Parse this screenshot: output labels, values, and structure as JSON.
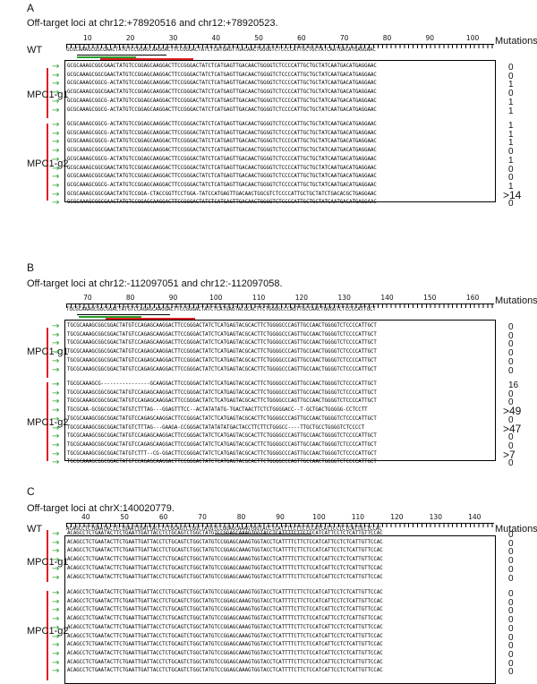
{
  "panels": [
    {
      "label": "A",
      "title": "Off-target loci at chr12:+78920516 and chr12:+78920523.",
      "wt_label": "WT",
      "mutations_header": "Mutations",
      "ruler_ticks": [
        "10",
        "20",
        "30",
        "40",
        "50",
        "60",
        "70",
        "80",
        "90",
        "100"
      ],
      "wt_seq": "GCGCAAAGCGGCGAACTATGTCCGGAGCAAGGACTTCCGGGACTATCTCATGAGTTGACAACTGGGGTCTCCCCATTGCTGCTATCAATGACATGAGGAAC",
      "groups": [
        {
          "name": "MPC1-g1",
          "rows": [
            {
              "seq": "GCGCAAAGCGGCGAACTATGTCCGGAGCAAGGACTTCCGGGACTATCTCATGAGTTGACAACTGGGGTCTCCCCATTGCTGCTATCAATGACATGAGGAAC",
              "mut": "0"
            },
            {
              "seq": "GCGCAAAGCGGCGAACTATGTCCGGAGCAAGGACTTCCGGGACTATCTCATGAGTTGACAACTGGGGTCTCCCCATTGCTGCTATCAATGACATGAGGAAC",
              "mut": "0"
            },
            {
              "seq": "GCGCAAAGCGGCG-ACTATGTCCGGAGCAAGGACTTCCGGGACTATCTCATGAGTTGACAACTGGGGTCTCCCCATTGCTGCTATCAATGACATGAGGAAC",
              "mut": "1"
            },
            {
              "seq": "GCGCAAAGCGGCGAACTATGTCCGGAGCAAGGACTTCCGGGACTATCTCATGAGTTGACAACTGGGGTCTCCCCATTGCTGCTATCAATGACATGAGGAAC",
              "mut": "0"
            },
            {
              "seq": "GCGCAAAGCGGCG-ACTATGTCCGGAGCAAGGACTTCCGGGACTATCTCATGAGTTGACAACTGGGGTCTCCCCATTGCTGCTATCAATGACATGAGGAAC",
              "mut": "1"
            },
            {
              "seq": "GCGCAAAGCGGCG-ACTATGTCCGGAGCAAGGACTTCCGGGACTATCTCATGAGTTGACAACTGGGGTCTCCCCATTGCTGCTATCAATGACATGAGGAAC",
              "mut": "1"
            }
          ]
        },
        {
          "name": "MPC1-g2",
          "rows": [
            {
              "seq": "GCGCAAAGCGGCG-ACTATGTCCGGAGCAAGGACTTCCGGGACTATCTCATGAGTTGACAACTGGGGTCTCCCCATTGCTGCTATCAATGACATGAGGAAC",
              "mut": "1"
            },
            {
              "seq": "GCGCAAAGCGGCG-ACTATGTCCGGAGCAAGGACTTCCGGGACTATCTCATGAGTTGACAACTGGGGTCTCCCCATTGCTGCTATCAATGACATGAGGAAC",
              "mut": "1"
            },
            {
              "seq": "GCGCAAAGCGGCG-ACTATGTCCGGAGCAAGGACTTCCGGGACTATCTCATGAGTTGACAACTGGGGTCTCCCCATTGCTGCTATCAATGACATGAGGAAC",
              "mut": "1"
            },
            {
              "seq": "GCGCAAAGCGGCGAACTATGTCCGGAGCAAGGACTTCCGGGACTATCTCATGAGTTGACAACTGGGGTCTCCCCATTGCTGCTATCAATGACATGAGGAAC",
              "mut": "0"
            },
            {
              "seq": "GCGCAAAGCGGCG-ACTATGTCCGGAGCAAGGACTTCCGGGACTATCTCATGAGTTGACAACTGGGGTCTCCCCATTGCTGCTATCAATGACATGAGGAAC",
              "mut": "1"
            },
            {
              "seq": "GCGCAAAGCGGCGAACTATGTCCGGAGCAAGGACTTCCGGGACTATCTCATGAGTTGACAACTGGGGTCTCCCCATTGCTGCTATCAATGACATGAGGAAC",
              "mut": "0"
            },
            {
              "seq": "GCGCAAAGCGGCGAACTATGTCCGGAGCAAGGACTTCCGGGACTATCTCATGAGTTGACAACTGGGGTCTCCCCATTGCTGCTATCAATGACATGAGGAAC",
              "mut": "0"
            },
            {
              "seq": "GCGCAAAGCGGCG-ACTATGTCCGGAGCAAGGACTTCCGGGACTATCTCATGAGTTGACAACTGGGGTCTCCCCATTGCTGCTATCAATGACATGAGGAAC",
              "mut": "1"
            },
            {
              "seq": "GCGCAAAGCGGCGAACTATGTCCGGA-CTACCGGTTCCTGGA-TATCCATGAGTTGACAACTGGCGTCTCCCCATTGCTGCTATCTGACACGCTGAGGAAC",
              "mut": ">14"
            },
            {
              "seq": "GCGCAAAGCGGCGAACTATGTCCGGAGCAAGGACTTCCGGGACTATCTCATGAGTTGACAACTGGGGTCTCCCCATTGCTGCTATCAATGACATGAGGAAC",
              "mut": "0"
            }
          ]
        }
      ]
    },
    {
      "label": "B",
      "title": "Off-target loci at chr12:-112097051 and chr12:-112097058.",
      "wt_label": "",
      "mutations_header": "Mutations",
      "ruler_ticks": [
        "70",
        "80",
        "90",
        "100",
        "110",
        "120",
        "130",
        "140",
        "150",
        "160"
      ],
      "wt_seq": "TGCGCAAAGCGGCGGACTATGTCCAGAGCAAGGACTTCCGGGACTATCTCATGAGTACGCACTTCTGGGGCCCAGTTGCCAACTGGGGTCTCCCCATTGCT",
      "groups": [
        {
          "name": "MPC1-g1",
          "rows": [
            {
              "seq": "TGCGCAAAGCGGCGGACTATGTCCAGAGCAAGGACTTCCGGGACTATCTCATGAGTACGCACTTCTGGGGCCCAGTTGCCAACTGGGGTCTCCCCATTGCT",
              "mut": "0"
            },
            {
              "seq": "TGCGCAAAGCGGCGGACTATGTCCAGAGCAAGGACTTCCGGGACTATCTCATGAGTACGCACTTCTGGGGCCCAGTTGCCAACTGGGGTCTCCCCATTGCT",
              "mut": "0"
            },
            {
              "seq": "TGCGCAAAGCGGCGGACTATGTCCAGAGCAAGGACTTCCGGGACTATCTCATGAGTACGCACTTCTGGGGCCCAGTTGCCAACTGGGGTCTCCCCATTGCT",
              "mut": "0"
            },
            {
              "seq": "TGCGCAAAGCGGCGGACTATGTCCAGAGCAAGGACTTCCGGGACTATCTCATGAGTACGCACTTCTGGGGCCCAGTTGCCAACTGGGGTCTCCCCATTGCT",
              "mut": "0"
            },
            {
              "seq": "TGCGCAAAGCGGCGGACTATGTCCAGAGCAAGGACTTCCGGGACTATCTCATGAGTACGCACTTCTGGGGCCCAGTTGCCAACTGGGGTCTCCCCATTGCT",
              "mut": "0"
            },
            {
              "seq": "TGCGCAAAGCGGCGGACTATGTCCAGAGCAAGGACTTCCGGGACTATCTCATGAGTACGCACTTCTGGGGCCCAGTTGCCAACTGGGGTCTCCCCATTGCT",
              "mut": "0"
            }
          ]
        },
        {
          "name": "MPC1-g2",
          "rows": [
            {
              "seq": "TGCGCAAAGCG----------------GCAAGGACTTCCGGGACTATCTCATGAGTACGCACTTCTGGGGCCCAGTTGCCAACTGGGGTCTCCCCATTGCT",
              "mut": "16"
            },
            {
              "seq": "TGCGCAAAGCGGCGGACTATGTCCAGAGCAAGGACTTCCGGGACTATCTCATGAGTACGCACTTCTGGGGCCCAGTTGCCAACTGGGGTCTCCCCATTGCT",
              "mut": "0"
            },
            {
              "seq": "TGCGCAAAGCGGCGGACTATGTCCAGAGCAAGGACTTCCGGGACTATCTCATGAGTACGCACTTCTGGGGCCCAGTTGCCAACTGGGGTCTCCCCATTGCT",
              "mut": "0"
            },
            {
              "seq": "TGCGCAA-GCGGCGGACTATGTCTTTAG---GGAGTTTCC--ACTATATATG-TGACTAACTTCTCTGGGGACC--T-GCTGACTGGGGG-CCTCCTT",
              "mut": ">49"
            },
            {
              "seq": "TGCGCAAAGCGGCGGACTATGTCCAGAGCAAGGACTTCCGGGACTATCTCATGAGTACGCACTTCTGGGGCCCAGTTGCCAACTGGGGTCTCCCCATTGCT",
              "mut": "0"
            },
            {
              "seq": "TGCGCAAAGCGGCGGACTATGTCTTTAG---GAAGA-CCGGGACTATATATATGACTACCTTCTTCTGGGCC----TTGCTGCCTGGGGTCTCCCCT",
              "mut": ">47"
            },
            {
              "seq": "TGCGCAAAGCGGCGGACTATGTCCAGAGCAAGGACTTCCGGGACTATCTCATGAGTACGCACTTCTGGGGCCCAGTTGCCAACTGGGGTCTCCCCATTGCT",
              "mut": "0"
            },
            {
              "seq": "TGCGCAAAGCGGCGGACTATGTCCAGAGCAAGGACTTCCGGGACTATCTCATGAGTACGCACTTCTGGGGCCCAGTTGCCAACTGGGGTCTCCCCATTGCT",
              "mut": "0"
            },
            {
              "seq": "TGCGCAAAGCGGCGGACTATGTCTTT--CG-GGACTTCCGGGACTATCTCATGAGTACGCACTTCTGGGGCCCAGTTGCCAACTGGGGTCTCCCCATTGCT",
              "mut": ">7"
            },
            {
              "seq": "TGCGCAAAGCGGCGGACTATGTCCAGAGCAAGGACTTCCGGGACTATCTCATGAGTACGCACTTCTGGGGCCCAGTTGCCAACTGGGGTCTCCCCATTGCT",
              "mut": "0"
            }
          ]
        }
      ]
    },
    {
      "label": "C",
      "title": "Off-target loci at chrX:140020779.",
      "wt_label": "WT",
      "mutations_header": "Mutations",
      "ruler_ticks": [
        "40",
        "50",
        "60",
        "70",
        "80",
        "90",
        "100",
        "110",
        "120",
        "130",
        "140"
      ],
      "wt_seq": "ACAGCCTCTGAATACTTCTGAATTGATTACCTCTGCAGTCTGGCTATGTCCGGAGCAAAGTGGTACCTCATTTTCTTCTCCATCATTCCTCTCATTGTTCCAC",
      "groups": [
        {
          "name": "MPC1-g1",
          "rows": [
            {
              "seq": "ACAGCCTCTGAATACTTCTGAATTGATTACCTCTGCAGTCTGGCTATGTCCGGAGCAAAGTGGTACCTCATTTTCTTCTCCATCATTCCTCTCATTGTTCCAC",
              "mut": "0"
            },
            {
              "seq": "ACAGCCTCTGAATACTTCTGAATTGATTACCTCTGCAGTCTGGCTATGTCCGGAGCAAAGTGGTACCTCATTTTCTTCTCCATCATTCCTCTCATTGTTCCAC",
              "mut": "0"
            },
            {
              "seq": "ACAGCCTCTGAATACTTCTGAATTGATTACCTCTGCAGTCTGGCTATGTCCGGAGCAAAGTGGTACCTCATTTTCTTCTCCATCATTCCTCTCATTGTTCCAC",
              "mut": "0"
            },
            {
              "seq": "ACAGCCTCTGAATACTTCTGAATTGATTACCTCTGCAGTCTGGCTATGTCCGGAGCAAAGTGGTACCTCATTTTCTTCTCCATCATTCCTCTCATTGTTCCAC",
              "mut": "0"
            },
            {
              "seq": "ACAGCCTCTGAATACTTCTGAATTGATTACCTCTGCAGTCTGGCTATGTCCGGAGCAAAGTGGTACCTCATTTTCTTCTCCATCATTCCTCTCATTGTTCCAC",
              "mut": "0"
            },
            {
              "seq": "ACAGCCTCTGAATACTTCTGAATTGATTACCTCTGCAGTCTGGCTATGTCCGGAGCAAAGTGGTACCTCATTTTCTTCTCCATCATTCCTCTCATTGTTCCAC",
              "mut": "0"
            }
          ]
        },
        {
          "name": "MPC1-g2",
          "rows": [
            {
              "seq": "ACAGCCTCTGAATACTTCTGAATTGATTACCTCTGCAGTCTGGCTATGTCCGGAGCAAAGTGGTACCTCATTTTCTTCTCCATCATTCCTCTCATTGTTCCAC",
              "mut": "0"
            },
            {
              "seq": "ACAGCCTCTGAATACTTCTGAATTGATTACCTCTGCAGTCTGGCTATGTCCGGAGCAAAGTGGTACCTCATTTTCTTCTCCATCATTCCTCTCATTGTTCCAC",
              "mut": "0"
            },
            {
              "seq": "ACAGCCTCTGAATACTTCTGAATTGATTACCTCTGCAGTCTGGCTATGTCCGGAGCAAAGTGGTACCTCATTTTCTTCTCCATCATTCCTCTCATTGTTCCAC",
              "mut": "0"
            },
            {
              "seq": "ACAGCCTCTGAATACTTCTGAATTGATTACCTCTGCAGTCTGGCTATGTCCGGAGCAAAGTGGTACCTCATTTTCTTCTCCATCATTCCTCTCATTGTTCCAC",
              "mut": "0"
            },
            {
              "seq": "ACAGCCTCTGAATACTTCTGAATTGATTACCTCTGCAGTCTGGCTATGTCCGGAGCAAAGTGGTACCTCATTTTCTTCTCCATCATTCCTCTCATTGTTCCAC",
              "mut": "0"
            },
            {
              "seq": "ACAGCCTCTGAATACTTCTGAATTGATTACCTCTGCAGTCTGGCTATGTCCGGAGCAAAGTGGTACCTCATTTTCTTCTCCATCATTCCTCTCATTGTTCCAC",
              "mut": "0"
            },
            {
              "seq": "ACAGCCTCTGAATACTTCTGAATTGATTACCTCTGCAGTCTGGCTATGTCCGGAGCAAAGTGGTACCTCATTTTCTTCTCCATCATTCCTCTCATTGTTCCAC",
              "mut": "0"
            },
            {
              "seq": "ACAGCCTCTGAATACTTCTGAATTGATTACCTCTGCAGTCTGGCTATGTCCGGAGCAAAGTGGTACCTCATTTTCTTCTCCATCATTCCTCTCATTGTTCCAC",
              "mut": "0"
            },
            {
              "seq": "ACAGCCTCTGAATACTTCTGAATTGATTACCTCTGCAGTCTGGCTATGTCCGGAGCAAAGTGGTACCTCATTTTCTTCTCCATCATTCCTCTCATTGTTCCAC",
              "mut": "0"
            },
            {
              "seq": "ACAGCCTCTGAATACTTCTGAATTGATTACCTCTGCAGTCTGGCTATGTCCGGAGCAAAGTGGTACCTCATTTTCTTCTCCATCATTCCTCTCATTGTTCCAC",
              "mut": "0"
            }
          ]
        }
      ]
    }
  ],
  "colors": {
    "guide_bar": "#e02020",
    "arrow": "#2b9e2b",
    "mismatch": "#e02020"
  }
}
